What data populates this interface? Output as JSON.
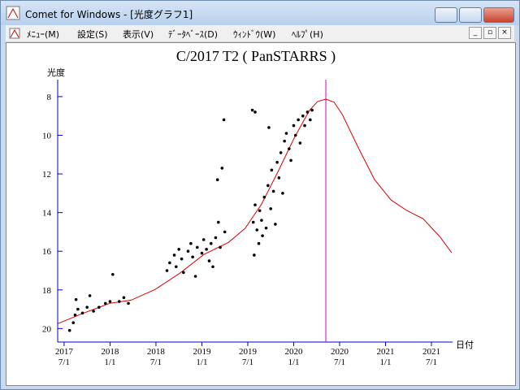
{
  "window": {
    "title": "Comet for Windows - [光度グラフ1]",
    "menu": [
      "ﾒﾆｭｰ(M)",
      "設定(S)",
      "表示(V)",
      "ﾃﾞｰﾀﾍﾞｰｽ(D)",
      "ｳｨﾝﾄﾞｳ(W)",
      "ﾍﾙﾌﾟ(H)"
    ]
  },
  "chart_data": {
    "type": "scatter",
    "title": "C/2017 T2 ( PanSTARRS )",
    "y_label": "光度",
    "x_label": "日付",
    "xlim": [
      2017.43,
      2021.73
    ],
    "ylim": [
      7.12,
      20.7
    ],
    "y_inverted": true,
    "yticks": [
      8,
      10,
      12,
      14,
      16,
      18,
      20
    ],
    "xticks": [
      {
        "value": 2017.5,
        "label": "2017 7/1"
      },
      {
        "value": 2018.0,
        "label": "2018 1/1"
      },
      {
        "value": 2018.5,
        "label": "2018 7/1"
      },
      {
        "value": 2019.0,
        "label": "2019 1/1"
      },
      {
        "value": 2019.5,
        "label": "2019 7/1"
      },
      {
        "value": 2020.0,
        "label": "2020 1/1"
      },
      {
        "value": 2020.5,
        "label": "2020 7/1"
      },
      {
        "value": 2021.0,
        "label": "2021 1/1"
      },
      {
        "value": 2021.5,
        "label": "2021 7/1"
      }
    ],
    "marker_line": {
      "x": 2020.35,
      "color": "#cc00cc"
    },
    "curve": {
      "color": "#e00000",
      "x": [
        2017.43,
        2017.69,
        2018.0,
        2018.23,
        2018.49,
        2018.76,
        2019.02,
        2019.29,
        2019.47,
        2019.65,
        2019.83,
        2020.0,
        2020.17,
        2020.26,
        2020.35,
        2020.44,
        2020.53,
        2020.7,
        2020.88,
        2021.06,
        2021.23,
        2021.41,
        2021.59,
        2021.72
      ],
      "values": [
        19.75,
        19.24,
        18.69,
        18.53,
        17.98,
        17.14,
        16.17,
        15.54,
        14.82,
        13.56,
        11.87,
        10.19,
        8.72,
        8.25,
        8.13,
        8.29,
        8.93,
        10.61,
        12.29,
        13.35,
        13.89,
        14.32,
        15.24,
        16.08
      ]
    },
    "points": {
      "color": "#000000",
      "x": [
        2017.56,
        2017.6,
        2017.62,
        2017.63,
        2017.65,
        2017.7,
        2017.75,
        2017.78,
        2017.82,
        2017.88,
        2017.95,
        2018.0,
        2018.03,
        2018.1,
        2018.15,
        2018.2,
        2018.62,
        2018.65,
        2018.7,
        2018.72,
        2018.75,
        2018.78,
        2018.8,
        2018.85,
        2018.88,
        2018.9,
        2018.93,
        2018.95,
        2019.0,
        2019.02,
        2019.05,
        2019.08,
        2019.1,
        2019.12,
        2019.15,
        2019.17,
        2019.18,
        2019.2,
        2019.22,
        2019.25,
        2019.24,
        2019.55,
        2019.58,
        2019.56,
        2019.57,
        2019.58,
        2019.6,
        2019.62,
        2019.63,
        2019.65,
        2019.66,
        2019.68,
        2019.7,
        2019.72,
        2019.73,
        2019.75,
        2019.76,
        2019.78,
        2019.8,
        2019.82,
        2019.84,
        2019.86,
        2019.88,
        2019.9,
        2019.92,
        2019.95,
        2019.97,
        2020.0,
        2020.02,
        2020.05,
        2020.07,
        2020.1,
        2020.12,
        2020.15,
        2020.18,
        2020.2
      ],
      "values": [
        20.1,
        19.7,
        19.3,
        18.5,
        19.0,
        19.2,
        18.9,
        18.3,
        19.1,
        18.9,
        18.7,
        18.6,
        17.2,
        18.6,
        18.4,
        18.7,
        17.0,
        16.6,
        16.2,
        16.8,
        15.9,
        16.4,
        17.1,
        16.0,
        15.6,
        16.3,
        17.3,
        15.8,
        16.1,
        15.4,
        15.9,
        16.5,
        15.6,
        16.8,
        15.3,
        12.3,
        14.5,
        15.8,
        11.7,
        15.0,
        9.2,
        8.7,
        8.8,
        14.5,
        16.2,
        13.6,
        14.9,
        15.6,
        13.9,
        14.4,
        15.2,
        13.2,
        14.8,
        12.6,
        9.6,
        13.8,
        11.8,
        12.9,
        14.6,
        11.4,
        12.2,
        10.9,
        13.0,
        10.3,
        9.9,
        10.7,
        11.3,
        9.5,
        10.0,
        9.2,
        10.4,
        9.0,
        9.5,
        8.8,
        9.2,
        8.7
      ]
    }
  }
}
